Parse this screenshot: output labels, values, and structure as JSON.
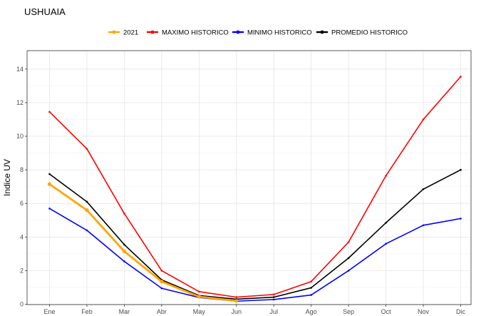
{
  "chart_data": {
    "type": "line",
    "title": "USHUAIA",
    "ylabel": "Indice UV",
    "xlabel": "",
    "categories": [
      "Ene",
      "Feb",
      "Mar",
      "Abr",
      "May",
      "Jun",
      "Jul",
      "Ago",
      "Sep",
      "Oct",
      "Nov",
      "Dic"
    ],
    "ylim": [
      0,
      15
    ],
    "yticks": [
      0,
      2,
      4,
      6,
      8,
      10,
      12,
      14
    ],
    "grid": true,
    "legend_position": "top",
    "series": [
      {
        "name": "2021",
        "color": "#FFA500",
        "values": [
          7.15,
          5.6,
          3.15,
          1.35,
          0.45,
          0.2,
          null,
          null,
          null,
          null,
          null,
          null
        ]
      },
      {
        "name": "MAXIMO HISTORICO",
        "color": "#FF0000",
        "values": [
          11.45,
          9.25,
          5.4,
          2.0,
          0.75,
          0.42,
          0.58,
          1.35,
          3.7,
          7.65,
          11.0,
          13.55
        ]
      },
      {
        "name": "MINIMO HISTORICO",
        "color": "#0000FF",
        "values": [
          5.7,
          4.4,
          2.55,
          0.95,
          0.4,
          0.18,
          0.28,
          0.55,
          2.0,
          3.6,
          4.7,
          5.1
        ]
      },
      {
        "name": "PROMEDIO HISTORICO",
        "color": "#000000",
        "values": [
          7.75,
          6.1,
          3.55,
          1.45,
          0.52,
          0.3,
          0.42,
          0.98,
          2.75,
          4.85,
          6.85,
          8.0
        ]
      }
    ]
  }
}
